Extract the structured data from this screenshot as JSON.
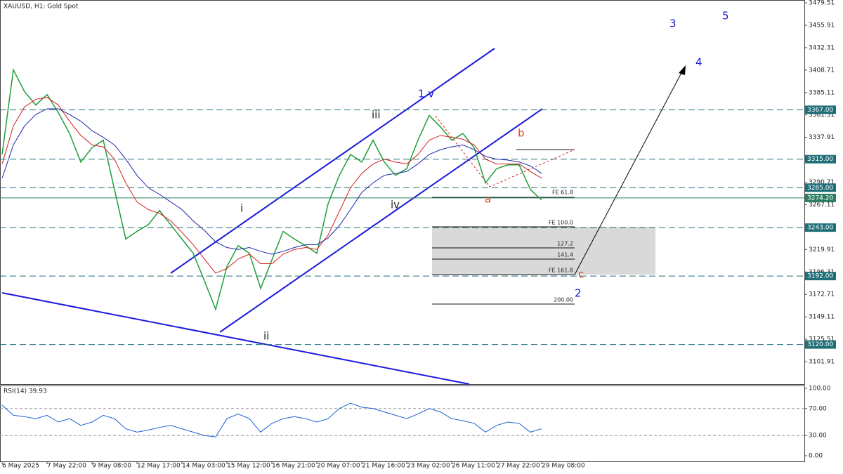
{
  "chart_data": [
    {
      "type": "line",
      "title": "XAUUSD, H1:  Gold Spot",
      "categories": [
        "6 May 2025",
        null,
        null,
        null,
        "7 May 22:00",
        null,
        null,
        null,
        "9 May 08:00",
        null,
        null,
        null,
        "12 May 17:00",
        null,
        null,
        null,
        "14 May 03:00",
        null,
        null,
        null,
        "15 May 12:00",
        null,
        null,
        null,
        "16 May 21:00",
        null,
        null,
        null,
        "20 May 07:00",
        null,
        null,
        null,
        "21 May 16:00",
        null,
        null,
        null,
        "23 May 02:00",
        null,
        null,
        null,
        "26 May 11:00",
        null,
        null,
        null,
        "27 May 22:00",
        null,
        null,
        null,
        "29 May 08:00"
      ],
      "series": [
        {
          "color": "#1e9e3a",
          "values": [
            3320,
            3409,
            3386,
            3372,
            3383,
            3364,
            3342,
            3312,
            3327,
            3335,
            3283,
            3231,
            3239,
            3246,
            3261,
            3246,
            3231,
            3216,
            3187,
            3157,
            3202,
            3224,
            3216,
            3179,
            3209,
            3239,
            3231,
            3224,
            3216,
            3268,
            3298,
            3320,
            3312,
            3335,
            3312,
            3298,
            3305,
            3335,
            3361,
            3349,
            3335,
            3342,
            3327,
            3290,
            3305,
            3309,
            3309,
            3283,
            3272
          ]
        },
        {
          "color": "#d42020",
          "values": [
            3310,
            3350,
            3370,
            3378,
            3380,
            3372,
            3355,
            3340,
            3330,
            3328,
            3315,
            3290,
            3270,
            3262,
            3258,
            3250,
            3238,
            3225,
            3210,
            3195,
            3200,
            3210,
            3215,
            3205,
            3205,
            3215,
            3220,
            3222,
            3220,
            3235,
            3260,
            3285,
            3300,
            3310,
            3315,
            3312,
            3310,
            3320,
            3335,
            3340,
            3338,
            3336,
            3330,
            3315,
            3310,
            3310,
            3310,
            3302,
            3295
          ]
        },
        {
          "color": "#1a2aa8",
          "values": [
            3295,
            3330,
            3350,
            3362,
            3368,
            3368,
            3362,
            3355,
            3345,
            3338,
            3330,
            3315,
            3298,
            3285,
            3278,
            3270,
            3262,
            3250,
            3240,
            3228,
            3222,
            3220,
            3222,
            3218,
            3215,
            3218,
            3222,
            3225,
            3225,
            3232,
            3245,
            3262,
            3280,
            3290,
            3298,
            3300,
            3302,
            3310,
            3320,
            3325,
            3328,
            3330,
            3325,
            3318,
            3315,
            3314,
            3312,
            3308,
            3300
          ]
        }
      ],
      "ylim": [
        3078.3,
        3482.5
      ],
      "yticks": [
        3479.51,
        3455.91,
        3432.31,
        3408.71,
        3385.11,
        3361.51,
        3337.91,
        3290.71,
        3267.11,
        3219.91,
        3196.31,
        3172.71,
        3149.11,
        3125.51,
        3101.91
      ],
      "levels": [
        {
          "value": 3367,
          "label": "3367.00"
        },
        {
          "value": 3315,
          "label": "3315.00"
        },
        {
          "value": 3285,
          "label": "3285.00"
        },
        {
          "value": 3243,
          "label": "3243.00"
        },
        {
          "value": 3192,
          "label": "3192.00"
        },
        {
          "value": 3120,
          "label": "3120.00"
        }
      ],
      "level_color": "#1f6f78",
      "price_line": {
        "value": 3274.2,
        "label": "3274.20",
        "color": "#2a7f62"
      },
      "annotations": [
        "i",
        "ii",
        "iii",
        "iv",
        "1 v",
        "a",
        "b",
        "c",
        "2",
        "3",
        "4",
        "5"
      ],
      "fib_labels": [
        "FE 61.8",
        "FE 100.0",
        "127.2",
        "141.4",
        "FE 161.8",
        "200.00"
      ]
    },
    {
      "type": "line",
      "title": "RSI(14) 39.93",
      "series": [
        {
          "color": "#1a5fd6",
          "values": [
            75,
            60,
            58,
            55,
            60,
            50,
            55,
            45,
            50,
            60,
            55,
            40,
            35,
            38,
            42,
            45,
            40,
            35,
            30,
            28,
            55,
            62,
            55,
            35,
            48,
            55,
            58,
            55,
            50,
            55,
            70,
            78,
            72,
            70,
            65,
            60,
            55,
            62,
            70,
            65,
            55,
            52,
            48,
            35,
            45,
            50,
            48,
            35,
            39.93
          ]
        }
      ],
      "ylim": [
        0,
        100
      ],
      "yticks": [
        {
          "value": 100,
          "label": "100.00"
        },
        {
          "value": 70,
          "label": "70.00"
        },
        {
          "value": 30,
          "label": "30.00"
        },
        {
          "value": 0,
          "label": "0.00"
        }
      ]
    }
  ]
}
